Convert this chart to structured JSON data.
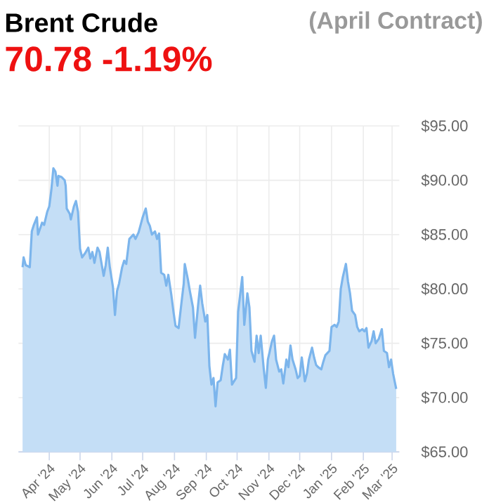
{
  "chart_data": {
    "type": "area",
    "title": "Brent Crude",
    "subtitle": "70.78 -1.19%",
    "annotations": [
      "(April Contract)"
    ],
    "x": [
      "2024-03-06",
      "2024-03-07",
      "2024-03-09",
      "2024-03-13",
      "2024-03-15",
      "2024-03-17",
      "2024-03-20",
      "2024-03-21",
      "2024-03-25",
      "2024-03-27",
      "2024-03-30",
      "2024-04-01",
      "2024-04-03",
      "2024-04-05",
      "2024-04-07",
      "2024-04-09",
      "2024-04-10",
      "2024-04-13",
      "2024-04-16",
      "2024-04-17",
      "2024-04-18",
      "2024-04-21",
      "2024-04-22",
      "2024-04-25",
      "2024-04-27",
      "2024-04-29",
      "2024-05-01",
      "2024-05-03",
      "2024-05-06",
      "2024-05-09",
      "2024-05-11",
      "2024-05-13",
      "2024-05-15",
      "2024-05-18",
      "2024-05-20",
      "2024-05-24",
      "2024-05-26",
      "2024-05-28",
      "2024-05-30",
      "2024-06-02",
      "2024-06-04",
      "2024-06-06",
      "2024-06-08",
      "2024-06-11",
      "2024-06-13",
      "2024-06-15",
      "2024-06-18",
      "2024-06-20",
      "2024-06-22",
      "2024-06-24",
      "2024-06-27",
      "2024-06-29",
      "2024-07-01",
      "2024-07-04",
      "2024-07-06",
      "2024-07-08",
      "2024-07-10",
      "2024-07-13",
      "2024-07-15",
      "2024-07-17",
      "2024-07-19",
      "2024-07-22",
      "2024-07-24",
      "2024-07-26",
      "2024-07-29",
      "2024-07-31",
      "2024-08-02",
      "2024-08-05",
      "2024-08-08",
      "2024-08-10",
      "2024-08-11",
      "2024-08-14",
      "2024-08-16",
      "2024-08-19",
      "2024-08-21",
      "2024-08-24",
      "2024-08-26",
      "2024-08-28",
      "2024-08-31",
      "2024-09-02",
      "2024-09-04",
      "2024-09-06",
      "2024-09-08",
      "2024-09-10",
      "2024-09-12",
      "2024-09-15",
      "2024-09-17",
      "2024-09-19",
      "2024-09-22",
      "2024-09-24",
      "2024-09-26",
      "2024-09-30",
      "2024-10-02",
      "2024-10-06",
      "2024-10-08",
      "2024-10-11",
      "2024-10-13",
      "2024-10-15",
      "2024-10-18",
      "2024-10-20",
      "2024-10-22",
      "2024-10-24",
      "2024-10-27",
      "2024-10-29",
      "2024-10-31",
      "2024-11-04",
      "2024-11-06",
      "2024-11-08",
      "2024-11-11",
      "2024-11-13",
      "2024-11-15",
      "2024-11-18",
      "2024-11-20",
      "2024-11-22",
      "2024-11-24",
      "2024-11-27",
      "2024-11-29",
      "2024-12-01",
      "2024-12-03",
      "2024-12-06",
      "2024-12-08",
      "2024-12-10",
      "2024-12-13",
      "2024-12-15",
      "2024-12-17",
      "2024-12-19",
      "2024-12-22",
      "2024-12-24",
      "2024-12-26",
      "2024-12-30",
      "2025-01-01",
      "2025-01-04",
      "2025-01-06",
      "2025-01-08",
      "2025-01-10",
      "2025-01-12",
      "2025-01-15",
      "2025-01-17",
      "2025-01-19",
      "2025-01-21",
      "2025-01-24",
      "2025-01-26",
      "2025-01-28",
      "2025-01-31",
      "2025-02-02",
      "2025-02-04",
      "2025-02-06",
      "2025-02-09",
      "2025-02-11",
      "2025-02-13",
      "2025-02-16",
      "2025-02-19",
      "2025-02-21",
      "2025-02-24",
      "2025-02-26",
      "2025-02-28",
      "2025-03-02",
      "2025-03-05"
    ],
    "series": [
      {
        "color": "#7cb5ec",
        "values": [
          82.0,
          82.9,
          82.2,
          82.0,
          85.3,
          85.9,
          86.6,
          85.0,
          86.1,
          85.9,
          87.1,
          87.6,
          89.1,
          91.1,
          90.8,
          89.5,
          90.4,
          90.3,
          90.0,
          89.5,
          87.4,
          86.9,
          86.4,
          87.6,
          88.1,
          87.1,
          83.7,
          82.9,
          83.3,
          83.8,
          82.8,
          83.4,
          82.4,
          83.8,
          83.4,
          81.2,
          82.2,
          83.8,
          82.0,
          80.2,
          77.6,
          79.8,
          80.5,
          82.0,
          82.6,
          82.3,
          84.6,
          84.8,
          85.0,
          84.6,
          85.2,
          85.9,
          86.6,
          87.4,
          86.2,
          85.8,
          85.0,
          85.3,
          84.6,
          85.1,
          81.5,
          81.3,
          80.3,
          81.3,
          79.4,
          77.9,
          76.6,
          76.4,
          78.9,
          80.5,
          82.3,
          80.9,
          79.8,
          78.3,
          75.5,
          78.5,
          80.3,
          78.7,
          77.0,
          77.6,
          72.9,
          71.2,
          71.8,
          69.2,
          71.4,
          71.6,
          72.9,
          74.0,
          73.5,
          74.4,
          71.2,
          71.8,
          77.9,
          81.1,
          76.7,
          79.6,
          78.3,
          74.3,
          73.3,
          75.7,
          74.1,
          75.7,
          72.6,
          70.9,
          73.5,
          75.2,
          75.7,
          73.5,
          72.4,
          72.6,
          71.3,
          73.5,
          72.8,
          74.8,
          73.5,
          72.6,
          71.8,
          72.0,
          73.7,
          71.5,
          72.2,
          73.5,
          74.6,
          73.7,
          73.0,
          72.8,
          72.6,
          73.3,
          73.9,
          74.3,
          76.5,
          76.7,
          76.5,
          77.0,
          80.0,
          81.1,
          82.3,
          80.7,
          79.6,
          78.0,
          77.6,
          76.5,
          76.1,
          76.3,
          76.1,
          76.4,
          74.6,
          75.2,
          76.1,
          75.0,
          75.4,
          76.3,
          74.3,
          74.1,
          72.8,
          73.5,
          72.2,
          70.8
        ]
      }
    ],
    "xlim": [
      "2024-03-02",
      "2025-03-08"
    ],
    "xticks": [
      {
        "value": "2024-04-01",
        "label": "Apr '24"
      },
      {
        "value": "2024-05-01",
        "label": "May '24"
      },
      {
        "value": "2024-06-01",
        "label": "Jun '24"
      },
      {
        "value": "2024-07-01",
        "label": "Jul '24"
      },
      {
        "value": "2024-08-01",
        "label": "Aug '24"
      },
      {
        "value": "2024-09-01",
        "label": "Sep '24"
      },
      {
        "value": "2024-10-01",
        "label": "Oct '24"
      },
      {
        "value": "2024-11-01",
        "label": "Nov '24"
      },
      {
        "value": "2024-12-01",
        "label": "Dec '24"
      },
      {
        "value": "2025-01-01",
        "label": "Jan '25"
      },
      {
        "value": "2025-02-01",
        "label": "Feb '25"
      },
      {
        "value": "2025-03-01",
        "label": "Mar '25"
      }
    ],
    "ylim": [
      65,
      95
    ],
    "yticks": [
      {
        "value": 65,
        "label": "$65.00"
      },
      {
        "value": 70,
        "label": "$70.00"
      },
      {
        "value": 75,
        "label": "$75.00"
      },
      {
        "value": 80,
        "label": "$80.00"
      },
      {
        "value": 85,
        "label": "$85.00"
      },
      {
        "value": 90,
        "label": "$90.00"
      },
      {
        "value": 95,
        "label": "$95.00"
      }
    ],
    "grid": true
  }
}
